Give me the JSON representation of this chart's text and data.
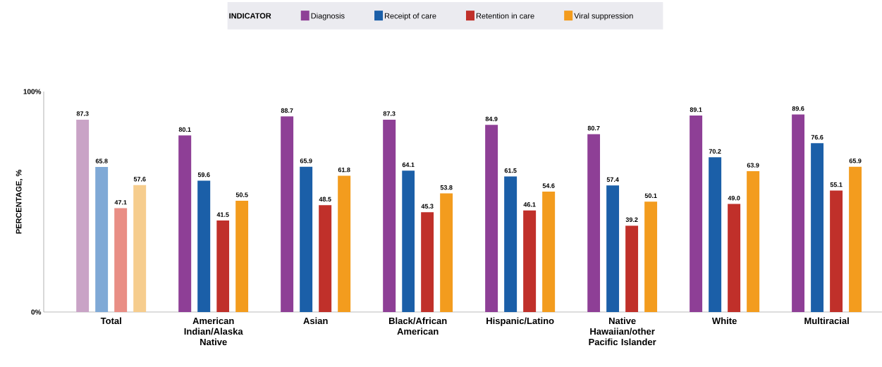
{
  "chart_data": {
    "type": "bar",
    "ylabel": "PERCENTAGE, %",
    "legend_title": "INDICATOR",
    "legend": "top",
    "categories": [
      "Total",
      "American Indian/Alaska Native",
      "Asian",
      "Black/African American",
      "Hispanic/Latino",
      "Native Hawaiian/other Pacific Islander",
      "White",
      "Multiracial"
    ],
    "ylim": [
      0,
      100
    ],
    "yticks": [
      {
        "value": 0,
        "label": "0%"
      },
      {
        "value": 100,
        "label": "100%"
      }
    ],
    "series": [
      {
        "name": "Diagnosis",
        "color": "#8e3f96",
        "colors": [
          "#c9a3c6",
          "#8e3f96",
          "#8e3f96",
          "#8e3f96",
          "#8e3f96",
          "#8e3f96",
          "#8e3f96",
          "#8e3f96"
        ],
        "values": [
          87.3,
          80.1,
          88.7,
          87.3,
          84.9,
          80.7,
          89.1,
          89.6
        ],
        "value_labels": [
          "87.3",
          "80.1",
          "88.7",
          "87.3",
          "84.9",
          "80.7",
          "89.1",
          "89.6"
        ]
      },
      {
        "name": "Receipt of care",
        "color": "#1b5fa8",
        "colors": [
          "#7fa9d6",
          "#1b5fa8",
          "#1b5fa8",
          "#1b5fa8",
          "#1b5fa8",
          "#1b5fa8",
          "#1b5fa8",
          "#1b5fa8"
        ],
        "values": [
          65.8,
          59.6,
          65.9,
          64.1,
          61.5,
          57.4,
          70.2,
          76.6
        ],
        "value_labels": [
          "65.8",
          "59.6",
          "65.9",
          "64.1",
          "61.5",
          "57.4",
          "70.2",
          "76.6"
        ]
      },
      {
        "name": "Retention in care",
        "color": "#c0302a",
        "colors": [
          "#e98e85",
          "#c0302a",
          "#c0302a",
          "#c0302a",
          "#c0302a",
          "#c0302a",
          "#c0302a",
          "#c0302a"
        ],
        "values": [
          47.1,
          41.5,
          48.5,
          45.3,
          46.1,
          39.2,
          49.0,
          55.1
        ],
        "value_labels": [
          "47.1",
          "41.5",
          "48.5",
          "45.3",
          "46.1",
          "39.2",
          "49.0",
          "55.1"
        ]
      },
      {
        "name": "Viral suppression",
        "color": "#f39c1e",
        "colors": [
          "#f6cd8e",
          "#f39c1e",
          "#f39c1e",
          "#f39c1e",
          "#f39c1e",
          "#f39c1e",
          "#f39c1e",
          "#f39c1e"
        ],
        "values": [
          57.6,
          50.5,
          61.8,
          53.8,
          54.6,
          50.1,
          63.9,
          65.9
        ],
        "value_labels": [
          "57.6",
          "50.5",
          "61.8",
          "53.8",
          "54.6",
          "50.1",
          "63.9",
          "65.9"
        ]
      }
    ]
  }
}
